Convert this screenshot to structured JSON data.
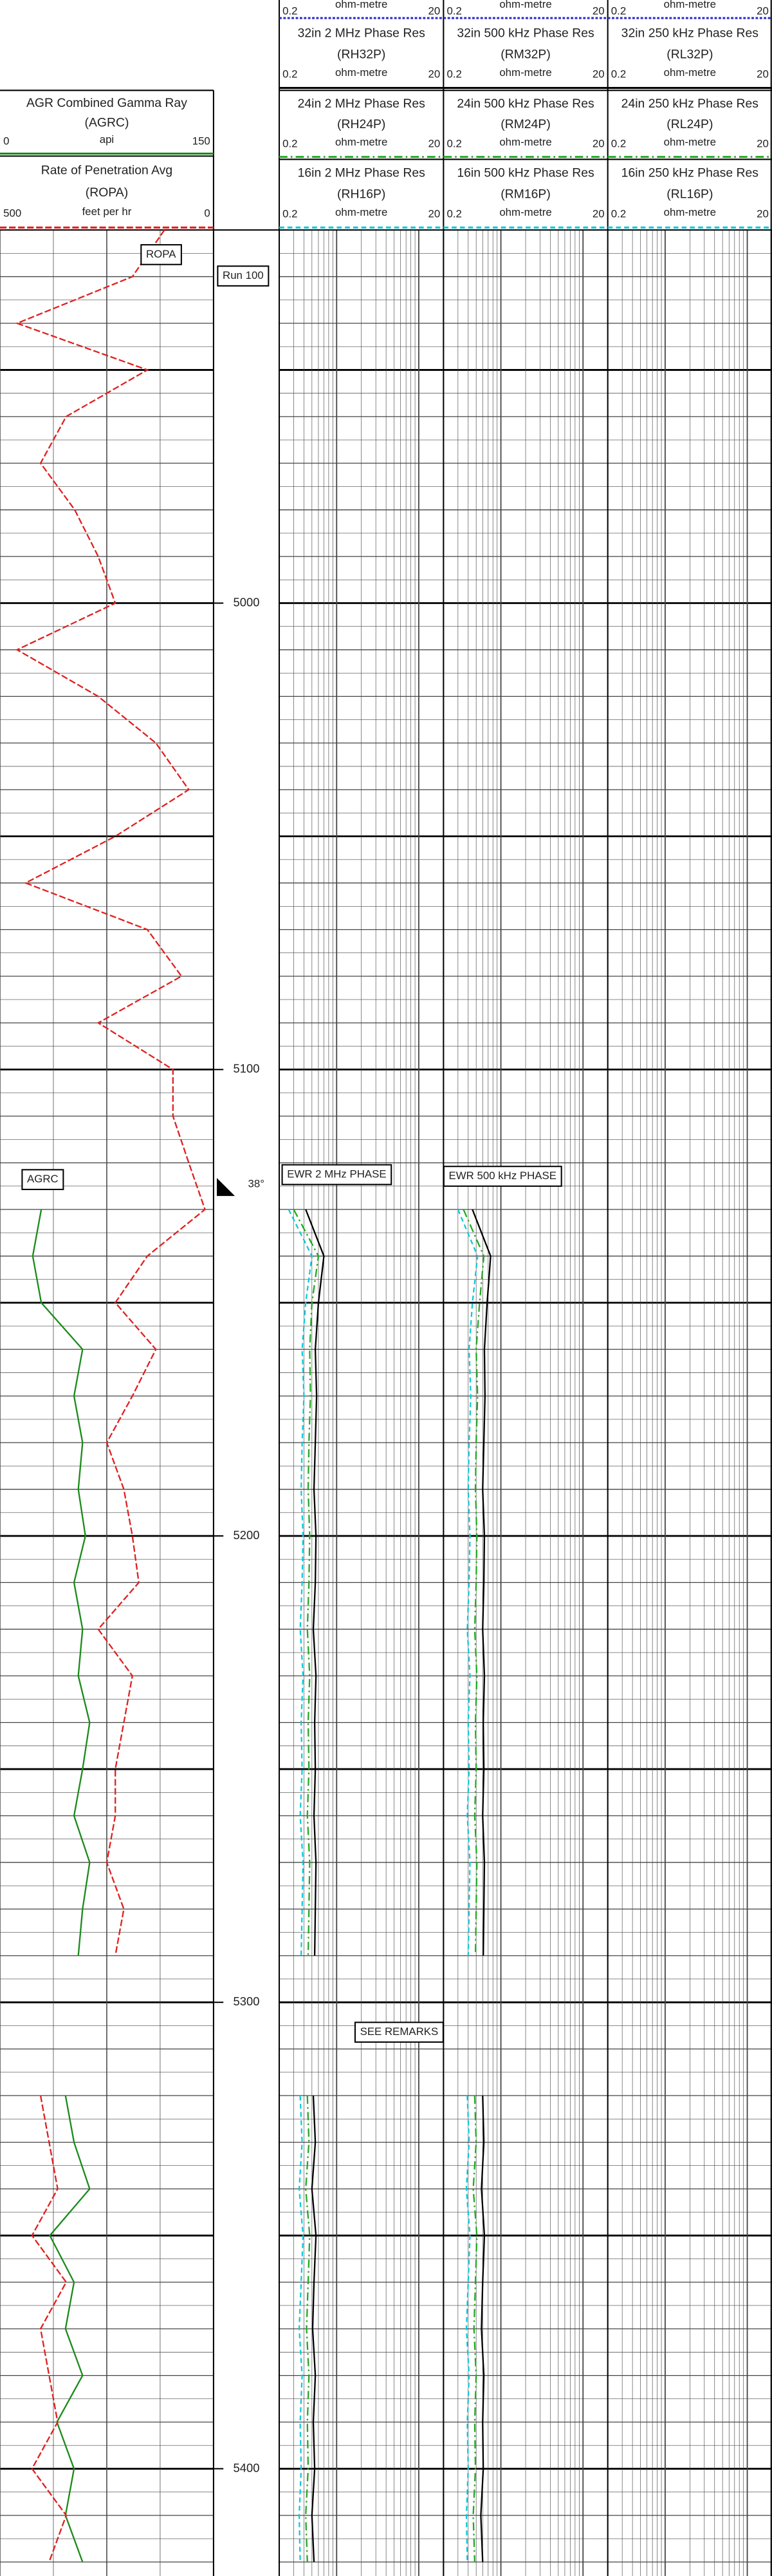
{
  "chart_data": {
    "type": "well_log",
    "depth_lim": [
      4920,
      5423
    ],
    "depth_ticks": [
      5000,
      5100,
      5200,
      5300,
      5400
    ],
    "depths": [
      4920,
      4930,
      4940,
      4950,
      4960,
      4970,
      4980,
      4990,
      5000,
      5010,
      5020,
      5030,
      5040,
      5050,
      5060,
      5070,
      5080,
      5090,
      5100,
      5110,
      5120,
      5130,
      5140,
      5150,
      5160,
      5170,
      5180,
      5190,
      5200,
      5210,
      5220,
      5230,
      5240,
      5250,
      5260,
      5270,
      5280,
      5290,
      5300,
      5310,
      5320,
      5330,
      5340,
      5350,
      5360,
      5370,
      5380,
      5390,
      5400,
      5410,
      5420
    ],
    "track1": [
      {
        "name": "AGR Combined Gamma Ray",
        "mnemonic": "(AGRC)",
        "unit": "api",
        "lim": [
          0,
          150
        ],
        "color": "#1a8a1a",
        "dash": "",
        "values": [
          null,
          null,
          null,
          null,
          null,
          null,
          null,
          null,
          null,
          null,
          null,
          null,
          null,
          null,
          null,
          null,
          null,
          null,
          null,
          null,
          null,
          29,
          23,
          29,
          58,
          52,
          58,
          55,
          60,
          52,
          58,
          55,
          63,
          58,
          52,
          63,
          58,
          55,
          null,
          null,
          46,
          52,
          63,
          35,
          52,
          46,
          58,
          40,
          52,
          46,
          58
        ]
      },
      {
        "name": "Rate of Penetration Avg",
        "mnemonic": "(ROPA)",
        "unit": "feet per hr",
        "lim": [
          500,
          0
        ],
        "color": "#e02020",
        "dash": "4 1.5",
        "values": [
          115,
          190,
          460,
          155,
          345,
          405,
          325,
          270,
          230,
          460,
          270,
          135,
          58,
          230,
          440,
          155,
          75,
          270,
          95,
          95,
          58,
          20,
          155,
          230,
          135,
          190,
          250,
          210,
          190,
          175,
          270,
          190,
          210,
          230,
          230,
          250,
          210,
          230,
          null,
          null,
          405,
          385,
          365,
          425,
          345,
          405,
          385,
          365,
          425,
          345,
          385
        ]
      }
    ],
    "resistivity_tracks": [
      {
        "top_scale": {
          "unit": "ohm-metre",
          "lim": [
            0.2,
            20
          ],
          "color": "#2a2ad0"
        },
        "curves": [
          {
            "name": "32in 2 MHz Phase Res",
            "mnemonic": "(RH32P)",
            "unit": "ohm-metre",
            "lim": [
              0.2,
              20
            ],
            "color": "#000000",
            "dash": "",
            "values": [
              null,
              null,
              null,
              null,
              null,
              null,
              null,
              null,
              null,
              null,
              null,
              null,
              null,
              null,
              null,
              null,
              null,
              null,
              null,
              null,
              null,
              0.42,
              0.7,
              0.6,
              0.55,
              0.57,
              0.55,
              0.53,
              0.56,
              0.55,
              0.52,
              0.56,
              0.54,
              0.55,
              0.53,
              0.56,
              0.55,
              0.54,
              null,
              null,
              0.52,
              0.55,
              0.5,
              0.56,
              0.53,
              0.51,
              0.55,
              0.52,
              0.54,
              0.5,
              0.53
            ]
          },
          {
            "name": "24in 2 MHz Phase Res",
            "mnemonic": "(RH24P)",
            "unit": "ohm-metre",
            "lim": [
              0.2,
              20
            ],
            "color": "#22aa22",
            "dash": "5 2 1 2",
            "values": [
              null,
              null,
              null,
              null,
              null,
              null,
              null,
              null,
              null,
              null,
              null,
              null,
              null,
              null,
              null,
              null,
              null,
              null,
              null,
              null,
              null,
              0.3,
              0.6,
              0.5,
              0.47,
              0.48,
              0.46,
              0.45,
              0.47,
              0.46,
              0.44,
              0.47,
              0.45,
              0.46,
              0.44,
              0.47,
              0.46,
              0.45,
              null,
              null,
              0.44,
              0.46,
              0.42,
              0.47,
              0.45,
              0.43,
              0.46,
              0.44,
              0.45,
              0.42,
              0.44
            ]
          },
          {
            "name": "16in 2 MHz Phase Res",
            "mnemonic": "(RH16P)",
            "unit": "ohm-metre",
            "lim": [
              0.2,
              20
            ],
            "color": "#10c8d8",
            "dash": "3 2",
            "values": [
              null,
              null,
              null,
              null,
              null,
              null,
              null,
              null,
              null,
              null,
              null,
              null,
              null,
              null,
              null,
              null,
              null,
              null,
              null,
              null,
              null,
              0.26,
              0.5,
              0.42,
              0.38,
              0.4,
              0.38,
              0.37,
              0.39,
              0.38,
              0.36,
              0.39,
              0.37,
              0.38,
              0.36,
              0.39,
              0.38,
              0.37,
              null,
              null,
              0.36,
              0.38,
              0.35,
              0.39,
              0.37,
              0.35,
              0.38,
              0.36,
              0.37,
              0.35,
              0.36
            ]
          }
        ]
      },
      {
        "top_scale": {
          "unit": "ohm-metre",
          "lim": [
            0.2,
            20
          ],
          "color": "#2a2ad0"
        },
        "curves": [
          {
            "name": "32in 500 kHz Phase Res",
            "mnemonic": "(RM32P)",
            "unit": "ohm-metre",
            "lim": [
              0.2,
              20
            ],
            "color": "#000000",
            "dash": "",
            "values": [
              null,
              null,
              null,
              null,
              null,
              null,
              null,
              null,
              null,
              null,
              null,
              null,
              null,
              null,
              null,
              null,
              null,
              null,
              null,
              null,
              null,
              0.45,
              0.75,
              0.68,
              0.63,
              0.64,
              0.62,
              0.6,
              0.63,
              0.62,
              0.6,
              0.63,
              0.61,
              0.62,
              0.6,
              0.63,
              0.62,
              0.61,
              null,
              null,
              0.6,
              0.62,
              0.58,
              0.63,
              0.6,
              0.58,
              0.62,
              0.6,
              0.61,
              0.57,
              0.6
            ]
          },
          {
            "name": "24in 500 kHz Phase Res",
            "mnemonic": "(RM24P)",
            "unit": "ohm-metre",
            "lim": [
              0.2,
              20
            ],
            "color": "#22aa22",
            "dash": "5 2 1 2",
            "values": [
              null,
              null,
              null,
              null,
              null,
              null,
              null,
              null,
              null,
              null,
              null,
              null,
              null,
              null,
              null,
              null,
              null,
              null,
              null,
              null,
              null,
              0.35,
              0.62,
              0.55,
              0.5,
              0.52,
              0.5,
              0.49,
              0.51,
              0.5,
              0.48,
              0.51,
              0.49,
              0.5,
              0.48,
              0.51,
              0.5,
              0.49,
              null,
              null,
              0.48,
              0.5,
              0.46,
              0.51,
              0.49,
              0.47,
              0.5,
              0.48,
              0.49,
              0.46,
              0.48
            ]
          },
          {
            "name": "16in 500 kHz Phase Res",
            "mnemonic": "(RM16P)",
            "unit": "ohm-metre",
            "lim": [
              0.2,
              20
            ],
            "color": "#10c8d8",
            "dash": "3 2",
            "values": [
              null,
              null,
              null,
              null,
              null,
              null,
              null,
              null,
              null,
              null,
              null,
              null,
              null,
              null,
              null,
              null,
              null,
              null,
              null,
              null,
              null,
              0.3,
              0.52,
              0.45,
              0.41,
              0.43,
              0.41,
              0.4,
              0.42,
              0.41,
              0.39,
              0.42,
              0.4,
              0.41,
              0.39,
              0.42,
              0.41,
              0.4,
              null,
              null,
              0.39,
              0.41,
              0.38,
              0.42,
              0.4,
              0.38,
              0.41,
              0.39,
              0.4,
              0.38,
              0.39
            ]
          }
        ]
      },
      {
        "top_scale": {
          "unit": "ohm-metre",
          "lim": [
            0.2,
            20
          ],
          "color": "#2a2ad0"
        },
        "curves": [
          {
            "name": "32in 250 kHz Phase Res",
            "mnemonic": "(RL32P)",
            "unit": "ohm-metre",
            "lim": [
              0.2,
              20
            ],
            "color": "#000000",
            "dash": ""
          },
          {
            "name": "24in 250 kHz Phase Res",
            "mnemonic": "(RL24P)",
            "unit": "ohm-metre",
            "lim": [
              0.2,
              20
            ],
            "color": "#22aa22",
            "dash": "5 2 1 2"
          },
          {
            "name": "16in 250 kHz Phase Res",
            "mnemonic": "(RL16P)",
            "unit": "ohm-metre",
            "lim": [
              0.2,
              20
            ],
            "color": "#10c8d8",
            "dash": "3 2"
          }
        ]
      }
    ],
    "annotations": [
      "ROPA",
      "Run 100",
      "AGRC",
      "38°",
      "EWR 2 MHz PHASE",
      "EWR 500 kHz PHASE",
      "SEE REMARKS"
    ]
  }
}
